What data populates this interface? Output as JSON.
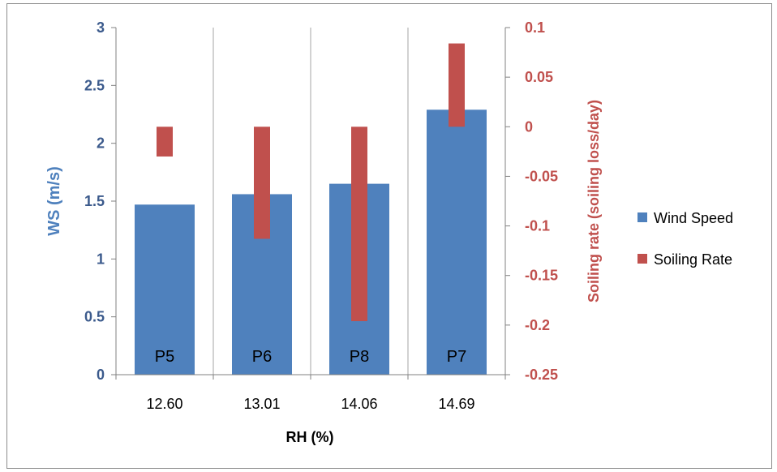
{
  "chart_data": {
    "type": "bar",
    "title": "",
    "xlabel": "RH (%)",
    "ylabel_left": "WS (m/s)",
    "ylabel_right": "Soiling rate (soiling loss/day)",
    "categories": [
      "12.60",
      "13.01",
      "14.06",
      "14.69"
    ],
    "bar_labels": [
      "P5",
      "P6",
      "P8",
      "P7"
    ],
    "series": [
      {
        "name": "Wind Speed",
        "axis": "left",
        "color": "#4f81bd",
        "values": [
          1.47,
          1.56,
          1.65,
          2.29
        ]
      },
      {
        "name": "Soiling Rate",
        "axis": "right",
        "color": "#c0504d",
        "values": [
          -0.03,
          -0.113,
          -0.196,
          0.084
        ]
      }
    ],
    "ylim_left": [
      0,
      3
    ],
    "yticks_left": [
      "0",
      "0.5",
      "1",
      "1.5",
      "2",
      "2.5",
      "3"
    ],
    "ylim_right": [
      -0.25,
      0.1
    ],
    "yticks_right": [
      "-0.25",
      "-0.2",
      "-0.15",
      "-0.1",
      "-0.05",
      "0",
      "0.05",
      "0.1"
    ],
    "grid": "vertical",
    "legend_position": "right"
  }
}
